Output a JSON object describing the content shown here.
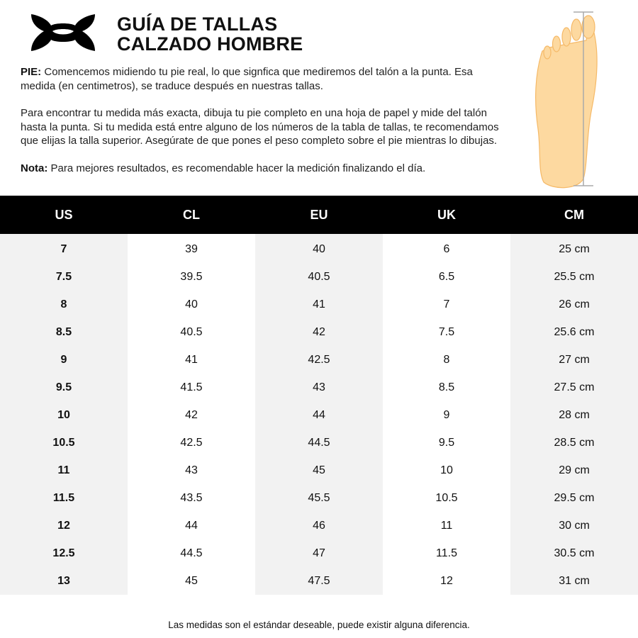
{
  "header": {
    "title_line1": "GUÍA DE TALLAS",
    "title_line2": "CALZADO HOMBRE",
    "logo": "under-armour-logo"
  },
  "intro": {
    "p1_label": "PIE:",
    "p1_text": " Comencemos midiendo tu pie real, lo que signfica que mediremos del talón a la punta. Esa medida (en centimetros), se traduce después en nuestras tallas.",
    "p2_text": "Para encontrar tu medida más exacta, dibuja tu pie completo en una hoja de papel y mide del talón hasta la punta. Si tu medida está entre alguno de los números de la tabla de tallas, te recomendamos que elijas la talla superior. Asegúrate de que pones el peso completo sobre el pie mientras lo dibujas.",
    "p3_label": "Nota:",
    "p3_text": " Para mejores resultados, es recomendable hacer la medición finalizando el día."
  },
  "colors": {
    "foot_fill": "#fdd9a0",
    "foot_stroke": "#f5b967",
    "header_bg": "#000000",
    "stripe_bg": "#f2f2f2"
  },
  "table": {
    "columns": [
      "US",
      "CL",
      "EU",
      "UK",
      "CM"
    ],
    "rows": [
      [
        "7",
        "39",
        "40",
        "6",
        "25 cm"
      ],
      [
        "7.5",
        "39.5",
        "40.5",
        "6.5",
        "25.5 cm"
      ],
      [
        "8",
        "40",
        "41",
        "7",
        "26 cm"
      ],
      [
        "8.5",
        "40.5",
        "42",
        "7.5",
        "25.6 cm"
      ],
      [
        "9",
        "41",
        "42.5",
        "8",
        "27 cm"
      ],
      [
        "9.5",
        "41.5",
        "43",
        "8.5",
        "27.5 cm"
      ],
      [
        "10",
        "42",
        "44",
        "9",
        "28 cm"
      ],
      [
        "10.5",
        "42.5",
        "44.5",
        "9.5",
        "28.5 cm"
      ],
      [
        "11",
        "43",
        "45",
        "10",
        "29 cm"
      ],
      [
        "11.5",
        "43.5",
        "45.5",
        "10.5",
        "29.5 cm"
      ],
      [
        "12",
        "44",
        "46",
        "11",
        "30 cm"
      ],
      [
        "12.5",
        "44.5",
        "47",
        "11.5",
        "30.5 cm"
      ],
      [
        "13",
        "45",
        "47.5",
        "12",
        "31 cm"
      ]
    ]
  },
  "footer": {
    "note": "Las medidas son el estándar deseable, puede existir alguna diferencia."
  }
}
